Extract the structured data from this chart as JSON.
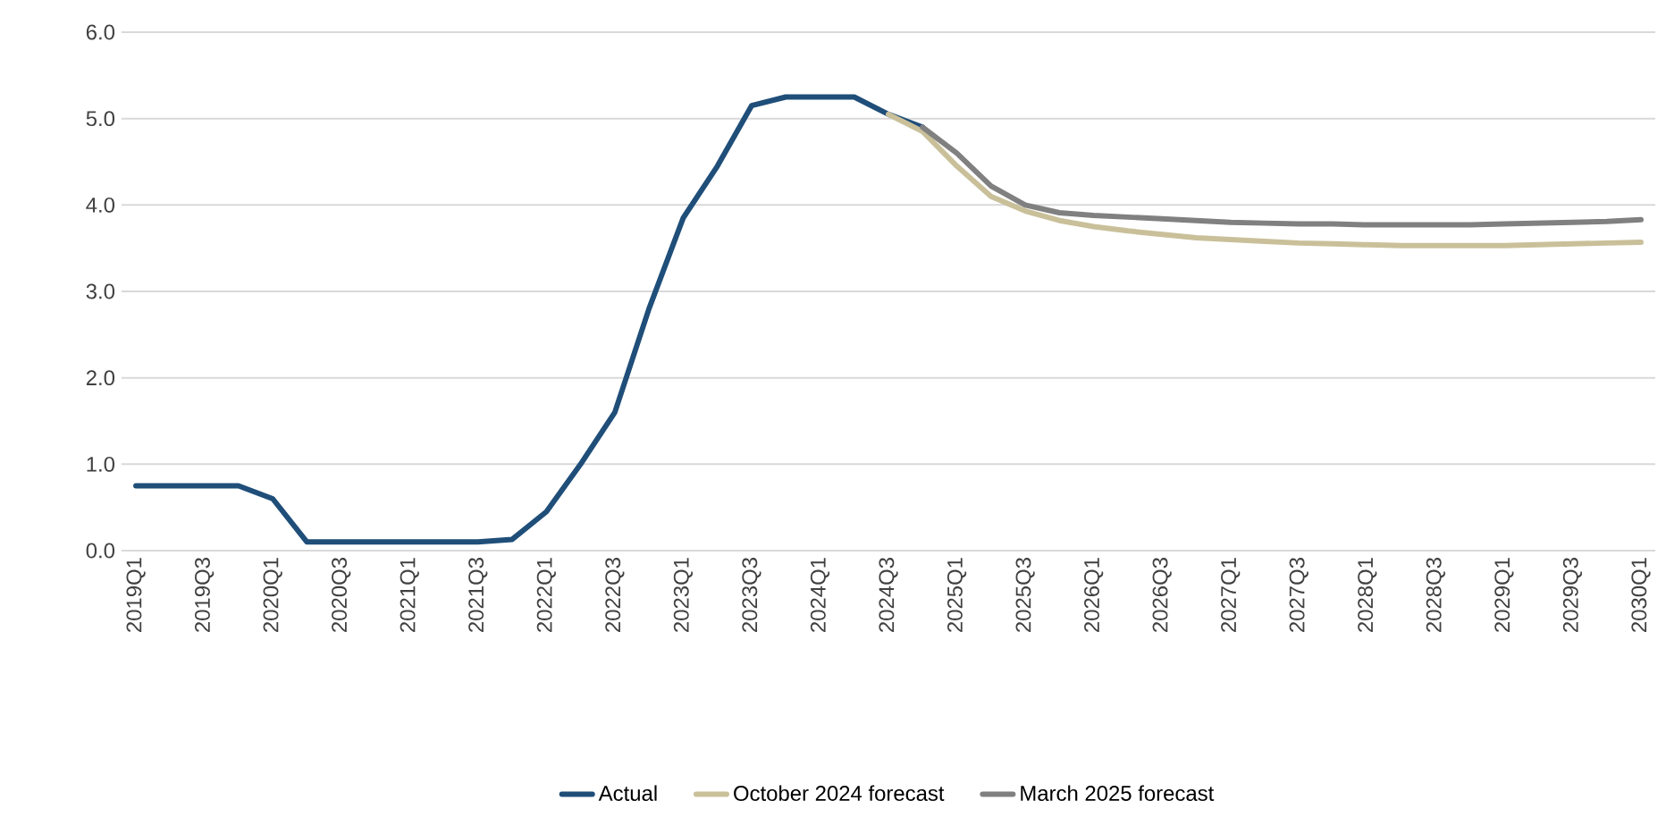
{
  "chart_data": {
    "type": "line",
    "categories": [
      "2019Q1",
      null,
      "2019Q3",
      null,
      "2020Q1",
      null,
      "2020Q3",
      null,
      "2021Q1",
      null,
      "2021Q3",
      null,
      "2022Q1",
      null,
      "2022Q3",
      null,
      "2023Q1",
      null,
      "2023Q3",
      null,
      "2024Q1",
      null,
      "2024Q3",
      null,
      "2025Q1",
      null,
      "2025Q3",
      null,
      "2026Q1",
      null,
      "2026Q3",
      null,
      "2027Q1",
      null,
      "2027Q3",
      null,
      "2028Q1",
      null,
      "2028Q3",
      null,
      "2029Q1",
      null,
      "2029Q3",
      null,
      "2030Q1"
    ],
    "series": [
      {
        "name": "Actual",
        "color": "#1f4e79",
        "values": [
          0.75,
          0.75,
          0.75,
          0.75,
          0.6,
          0.1,
          0.1,
          0.1,
          0.1,
          0.1,
          0.1,
          0.13,
          0.45,
          1.0,
          1.6,
          2.8,
          3.85,
          4.45,
          5.15,
          5.25,
          5.25,
          5.25,
          5.05,
          4.9,
          null,
          null,
          null,
          null,
          null,
          null,
          null,
          null,
          null,
          null,
          null,
          null,
          null,
          null,
          null,
          null,
          null,
          null,
          null,
          null,
          null
        ]
      },
      {
        "name": "October 2024 forecast",
        "color": "#c9c09a",
        "values": [
          null,
          null,
          null,
          null,
          null,
          null,
          null,
          null,
          null,
          null,
          null,
          null,
          null,
          null,
          null,
          null,
          null,
          null,
          null,
          null,
          null,
          null,
          5.05,
          4.85,
          4.45,
          4.1,
          3.93,
          3.82,
          3.75,
          3.7,
          3.66,
          3.62,
          3.6,
          3.58,
          3.56,
          3.55,
          3.54,
          3.53,
          3.53,
          3.53,
          3.53,
          3.54,
          3.55,
          3.56,
          3.57
        ]
      },
      {
        "name": "March 2025 forecast",
        "color": "#808080",
        "values": [
          null,
          null,
          null,
          null,
          null,
          null,
          null,
          null,
          null,
          null,
          null,
          null,
          null,
          null,
          null,
          null,
          null,
          null,
          null,
          null,
          null,
          null,
          null,
          4.9,
          4.6,
          4.22,
          4.0,
          3.91,
          3.88,
          3.86,
          3.84,
          3.82,
          3.8,
          3.79,
          3.78,
          3.78,
          3.77,
          3.77,
          3.77,
          3.77,
          3.78,
          3.79,
          3.8,
          3.81,
          3.83
        ]
      }
    ],
    "ylim": [
      0,
      6
    ],
    "yticks": [
      {
        "value": 0,
        "label": "0.0"
      },
      {
        "value": 1,
        "label": "1.0"
      },
      {
        "value": 2,
        "label": "2.0"
      },
      {
        "value": 3,
        "label": "3.0"
      },
      {
        "value": 4,
        "label": "4.0"
      },
      {
        "value": 5,
        "label": "5.0"
      },
      {
        "value": 6,
        "label": "6.0"
      }
    ],
    "grid": "y",
    "legend": "bottom"
  }
}
